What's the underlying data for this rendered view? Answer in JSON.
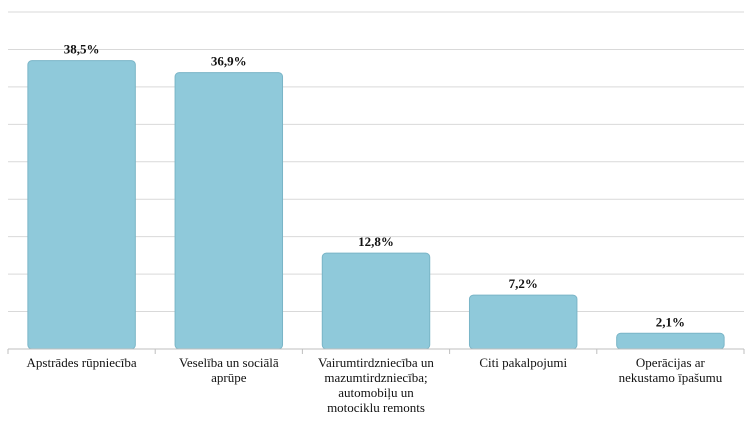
{
  "chart_data": {
    "type": "bar",
    "title": "",
    "xlabel": "",
    "ylabel": "",
    "categories": [
      [
        "Apstrādes rūpniecība"
      ],
      [
        "Veselība un sociālā",
        "aprūpe"
      ],
      [
        "Vairumtirdzniecība un",
        "mazumtirdzniecība;",
        "automobiļu un",
        "motociklu remonts"
      ],
      [
        "Citi pakalpojumi"
      ],
      [
        "Operācijas ar",
        "nekustamo īpašumu"
      ]
    ],
    "values": [
      38.5,
      36.9,
      12.8,
      7.2,
      2.1
    ],
    "data_labels": [
      "38,5%",
      "36,9%",
      "12,8%",
      "7,2%",
      "2,1%"
    ],
    "ylim": [
      0,
      45
    ],
    "y_gridline_step": 5,
    "y_tick_labels_shown": false,
    "grid": true,
    "legend": "none",
    "colors": {
      "bar": "#8fc9da",
      "bar_edge": "#7ab5c7",
      "grid": "#d9d9d9",
      "axis": "#bfbfbf"
    }
  }
}
